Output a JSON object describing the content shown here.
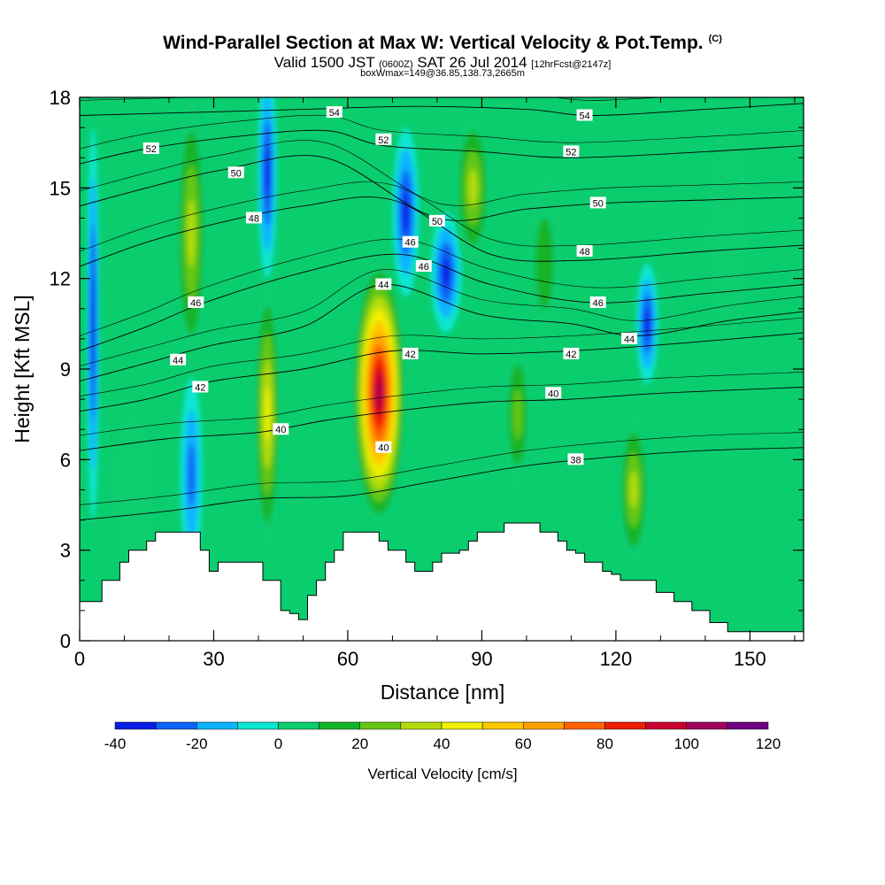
{
  "header": {
    "title": "Wind-Parallel Section at Max W: Vertical Velocity & Pot.Temp.",
    "copyright": "(C)",
    "valid_prefix": "Valid 1500 JST",
    "valid_utc": "(0600Z)",
    "valid_date": "SAT 26 Jul 2014",
    "forecast_info": "[12hrFcst@2147z]",
    "box_info": "boxWmax=149@36.85,138.73,2665m"
  },
  "chart_data": {
    "type": "heatmap",
    "xlabel": "Distance [nm]",
    "ylabel": "Height [Kft MSL]",
    "xlim": [
      0,
      162
    ],
    "ylim": [
      0,
      18
    ],
    "xticks": [
      0,
      30,
      60,
      90,
      120,
      150
    ],
    "yticks": [
      0,
      3,
      6,
      9,
      12,
      15,
      18
    ],
    "x_minor_step": 10,
    "y_minor_step": 1,
    "background_velocity_cms": 0,
    "colorbar": {
      "title": "Vertical Velocity [cm/s]",
      "levels": [
        -40,
        -30,
        -20,
        -10,
        0,
        10,
        20,
        30,
        40,
        50,
        60,
        70,
        80,
        90,
        100,
        110,
        120
      ],
      "tick_labels": [
        "-40",
        "-20",
        "0",
        "20",
        "40",
        "60",
        "80",
        "100",
        "120"
      ],
      "tick_values": [
        -40,
        -20,
        0,
        20,
        40,
        60,
        80,
        100,
        120
      ],
      "colors": [
        "#0a1ee6",
        "#0a64f5",
        "#0ab4ff",
        "#0ae6d2",
        "#0acd6e",
        "#14b428",
        "#64c814",
        "#b4dc0a",
        "#f0f000",
        "#ffc800",
        "#ffa000",
        "#ff6400",
        "#f01e00",
        "#c8002d",
        "#a0005a",
        "#6e0082"
      ]
    },
    "velocity_features": [
      {
        "x": 3,
        "y": 10.5,
        "rx": 1.5,
        "ry": 6.5,
        "value": -40
      },
      {
        "x": 25,
        "y": 13.5,
        "rx": 3.5,
        "ry": 4.5,
        "value": 40
      },
      {
        "x": 25,
        "y": 5.5,
        "rx": 2.5,
        "ry": 3.2,
        "value": -30
      },
      {
        "x": 42,
        "y": 7.5,
        "rx": 3.0,
        "ry": 4.5,
        "value": 50
      },
      {
        "x": 42,
        "y": 15.5,
        "rx": 2.2,
        "ry": 3.5,
        "value": -35
      },
      {
        "x": 67,
        "y": 8.2,
        "rx": 6.0,
        "ry": 4.4,
        "value": 110
      },
      {
        "x": 73,
        "y": 14.2,
        "rx": 3.0,
        "ry": 2.8,
        "value": -40
      },
      {
        "x": 82,
        "y": 12.2,
        "rx": 3.5,
        "ry": 2.0,
        "value": -35
      },
      {
        "x": 88,
        "y": 15.0,
        "rx": 4.0,
        "ry": 2.5,
        "value": 40
      },
      {
        "x": 98,
        "y": 7.5,
        "rx": 3.0,
        "ry": 2.5,
        "value": 30
      },
      {
        "x": 124,
        "y": 5.0,
        "rx": 3.5,
        "ry": 2.5,
        "value": 40
      },
      {
        "x": 127,
        "y": 10.5,
        "rx": 2.5,
        "ry": 2.0,
        "value": -35
      },
      {
        "x": 104,
        "y": 12.5,
        "rx": 4.0,
        "ry": 3.0,
        "value": 20
      },
      {
        "x": 145,
        "y": 13.5,
        "rx": 5.0,
        "ry": 3.5,
        "value": 10
      },
      {
        "x": 12,
        "y": 5.0,
        "rx": 5.0,
        "ry": 2.5,
        "value": 10
      }
    ],
    "terrain": {
      "x": [
        0,
        3,
        5,
        7,
        9,
        11,
        13,
        15,
        17,
        19,
        21,
        23,
        25,
        27,
        29,
        31,
        33,
        35,
        37,
        39,
        41,
        43,
        45,
        47,
        49,
        51,
        53,
        55,
        57,
        59,
        61,
        63,
        65,
        67,
        69,
        71,
        73,
        75,
        77,
        79,
        81,
        83,
        85,
        87,
        89,
        91,
        93,
        95,
        97,
        99,
        101,
        103,
        105,
        107,
        109,
        111,
        113,
        115,
        117,
        119,
        121,
        123,
        125,
        127,
        129,
        131,
        133,
        135,
        137,
        139,
        141,
        143,
        145,
        147,
        149,
        151,
        153,
        155,
        157,
        159,
        162
      ],
      "y": [
        1.3,
        1.3,
        2.0,
        2.0,
        2.6,
        3.0,
        3.0,
        3.3,
        3.6,
        3.6,
        3.6,
        3.6,
        3.6,
        3.0,
        2.3,
        2.6,
        2.6,
        2.6,
        2.6,
        2.6,
        2.0,
        2.0,
        1.0,
        0.9,
        0.7,
        1.5,
        2.0,
        2.6,
        3.0,
        3.6,
        3.6,
        3.6,
        3.6,
        3.3,
        3.0,
        3.0,
        2.6,
        2.3,
        2.3,
        2.6,
        2.9,
        2.9,
        3.0,
        3.3,
        3.6,
        3.6,
        3.6,
        3.9,
        3.9,
        3.9,
        3.9,
        3.6,
        3.6,
        3.3,
        3.0,
        2.9,
        2.6,
        2.6,
        2.3,
        2.2,
        2.0,
        2.0,
        2.0,
        2.0,
        1.6,
        1.6,
        1.3,
        1.3,
        1.0,
        1.0,
        0.6,
        0.6,
        0.3,
        0.3,
        0.3,
        0.3,
        0.3,
        0.3,
        0.3,
        0.3,
        0.3
      ]
    },
    "isentropes": [
      {
        "theta": 38,
        "label": "38",
        "label_at": [
          111,
          6.0
        ],
        "points": [
          [
            0,
            4.0
          ],
          [
            20,
            4.3
          ],
          [
            40,
            4.7
          ],
          [
            60,
            4.8
          ],
          [
            80,
            5.3
          ],
          [
            100,
            5.8
          ],
          [
            120,
            6.1
          ],
          [
            140,
            6.3
          ],
          [
            162,
            6.4
          ]
        ]
      },
      {
        "theta": 40,
        "label": "40",
        "label_at": [
          45,
          7.0
        ],
        "points": [
          [
            0,
            6.3
          ],
          [
            20,
            6.7
          ],
          [
            40,
            6.9
          ],
          [
            55,
            7.3
          ],
          [
            70,
            7.6
          ],
          [
            90,
            7.9
          ],
          [
            110,
            8.0
          ],
          [
            130,
            8.2
          ],
          [
            162,
            8.4
          ]
        ]
      },
      {
        "theta": 42,
        "label": "42",
        "label_at": [
          27,
          8.4
        ],
        "points": [
          [
            0,
            7.6
          ],
          [
            15,
            8.0
          ],
          [
            30,
            8.6
          ],
          [
            50,
            9.0
          ],
          [
            70,
            9.6
          ],
          [
            90,
            9.5
          ],
          [
            110,
            9.6
          ],
          [
            130,
            9.8
          ],
          [
            162,
            10.2
          ]
        ]
      },
      {
        "theta": 44,
        "label": "44",
        "label_at": [
          22,
          9.3
        ],
        "points": [
          [
            0,
            8.6
          ],
          [
            15,
            9.2
          ],
          [
            30,
            9.8
          ],
          [
            50,
            10.4
          ],
          [
            68,
            11.8
          ],
          [
            90,
            10.8
          ],
          [
            110,
            10.5
          ],
          [
            125,
            10.1
          ],
          [
            145,
            10.6
          ],
          [
            162,
            10.9
          ]
        ]
      },
      {
        "theta": 46,
        "label": "46",
        "label_at": [
          26,
          11.2
        ],
        "points": [
          [
            0,
            9.6
          ],
          [
            15,
            10.4
          ],
          [
            28,
            11.2
          ],
          [
            50,
            12.2
          ],
          [
            72,
            12.8
          ],
          [
            92,
            11.8
          ],
          [
            115,
            11.2
          ],
          [
            140,
            11.5
          ],
          [
            162,
            11.8
          ]
        ]
      },
      {
        "theta": 48,
        "label": "48",
        "label_at": [
          39,
          14.0
        ],
        "points": [
          [
            0,
            12.4
          ],
          [
            15,
            13.2
          ],
          [
            30,
            13.8
          ],
          [
            50,
            14.4
          ],
          [
            70,
            14.6
          ],
          [
            92,
            12.8
          ],
          [
            112,
            12.6
          ],
          [
            140,
            12.9
          ],
          [
            162,
            13.1
          ]
        ]
      },
      {
        "theta": 50,
        "label": "50",
        "label_at": [
          35,
          15.5
        ],
        "points": [
          [
            0,
            14.4
          ],
          [
            15,
            15.0
          ],
          [
            32,
            15.6
          ],
          [
            55,
            16.0
          ],
          [
            80,
            14.0
          ],
          [
            100,
            14.3
          ],
          [
            118,
            14.5
          ],
          [
            140,
            14.6
          ],
          [
            162,
            14.7
          ]
        ]
      },
      {
        "theta": 52,
        "label": "52",
        "label_at": [
          16,
          16.3
        ],
        "points": [
          [
            0,
            15.8
          ],
          [
            15,
            16.3
          ],
          [
            35,
            16.7
          ],
          [
            55,
            16.9
          ],
          [
            68,
            16.4
          ],
          [
            90,
            16.2
          ],
          [
            110,
            16.0
          ],
          [
            140,
            16.2
          ],
          [
            162,
            16.4
          ]
        ]
      },
      {
        "theta": 54,
        "label": "54",
        "label_at": [
          57,
          17.5
        ],
        "points": [
          [
            0,
            17.4
          ],
          [
            25,
            17.5
          ],
          [
            50,
            17.6
          ],
          [
            75,
            17.7
          ],
          [
            100,
            17.6
          ],
          [
            115,
            17.4
          ],
          [
            140,
            17.6
          ],
          [
            162,
            17.8
          ]
        ]
      }
    ],
    "extra_contour_labels": [
      {
        "label": "40",
        "at": [
          68,
          6.4
        ]
      },
      {
        "label": "42",
        "at": [
          74,
          9.5
        ]
      },
      {
        "label": "44",
        "at": [
          68,
          11.8
        ]
      },
      {
        "label": "46",
        "at": [
          74,
          13.2
        ]
      },
      {
        "label": "46",
        "at": [
          77,
          12.4
        ]
      },
      {
        "label": "50",
        "at": [
          80,
          13.9
        ]
      },
      {
        "label": "52",
        "at": [
          68,
          16.6
        ]
      },
      {
        "label": "40",
        "at": [
          106,
          8.2
        ]
      },
      {
        "label": "42",
        "at": [
          110,
          9.5
        ]
      },
      {
        "label": "44",
        "at": [
          123,
          10.0
        ]
      },
      {
        "label": "46",
        "at": [
          116,
          11.2
        ]
      },
      {
        "label": "48",
        "at": [
          113,
          12.9
        ]
      },
      {
        "label": "50",
        "at": [
          116,
          14.5
        ]
      },
      {
        "label": "52",
        "at": [
          110,
          16.2
        ]
      },
      {
        "label": "54",
        "at": [
          113,
          17.4
        ]
      }
    ]
  }
}
